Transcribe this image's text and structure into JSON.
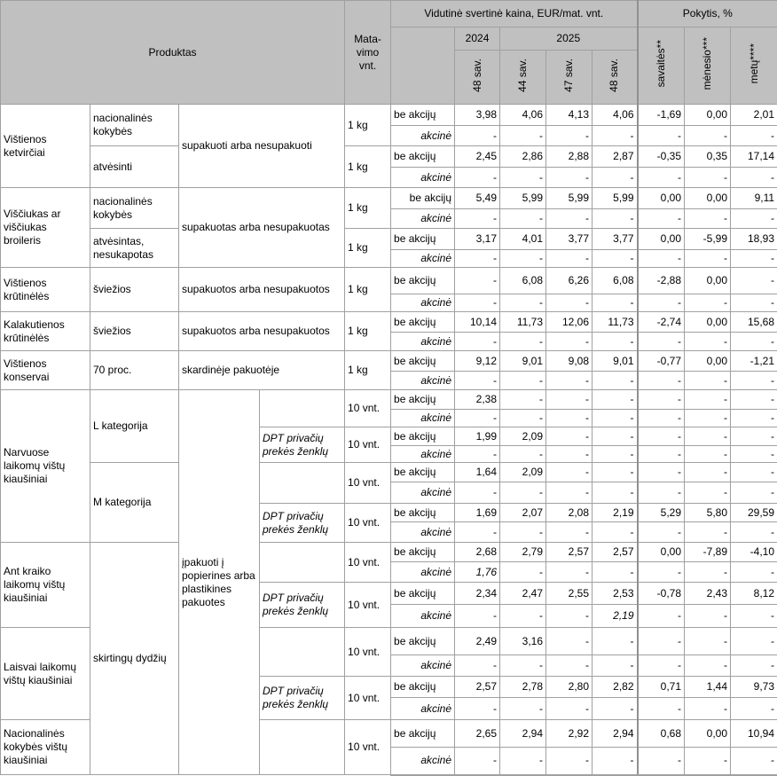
{
  "header": {
    "product": "Produktas",
    "unit": "Mata-\nvimo\nvnt.",
    "avg_price": "Vidutinė svertinė kaina, EUR/mat. vnt.",
    "change": "Pokytis, %",
    "year_2024": "2024",
    "year_2025": "2025",
    "weeks": [
      "48 sav.",
      "44 sav.",
      "47 sav.",
      "48 sav."
    ],
    "change_cols": [
      "savaitės**",
      "mėnesio***",
      "metų****"
    ]
  },
  "type_labels": {
    "regular": "be akcijų",
    "promo": "akcinė"
  },
  "col_product": [
    {
      "text": "Vištienos ketvirčiai",
      "rows": 2
    },
    {
      "text": "Viščiukas ar viščiukas broileris",
      "rows": 2
    },
    {
      "text": "Vištienos krūtinėlės",
      "rows": 1
    },
    {
      "text": "Kalakutienos krūtinėlės",
      "rows": 1
    },
    {
      "text": "Vištienos konservai",
      "rows": 1
    },
    {
      "text": "Narvuose laikomų vištų kiaušiniai",
      "rows": 4
    },
    {
      "text": "Ant kraiko laikomų vištų kiaušiniai",
      "rows": 2
    },
    {
      "text": "Laisvai laikomų vištų kiaušiniai",
      "rows": 2
    },
    {
      "text": "Nacionalinės kokybės vištų kiaušiniai",
      "rows": 1
    }
  ],
  "col_variant": [
    {
      "text": "nacionalinės kokybės",
      "rows": 1
    },
    {
      "text": "atvėsinti",
      "rows": 1
    },
    {
      "text": "nacionalinės kokybės",
      "rows": 1
    },
    {
      "text": "atvėsintas, nesukapotas",
      "rows": 1
    },
    {
      "text": "šviežios",
      "rows": 1
    },
    {
      "text": "šviežios",
      "rows": 1
    },
    {
      "text": "70 proc.",
      "rows": 1
    },
    {
      "text": "L kategorija",
      "rows": 2
    },
    {
      "text": "M kategorija",
      "rows": 2
    },
    {
      "text": "skirtingų dydžių",
      "rows": 5
    }
  ],
  "col_packaging": [
    {
      "text": "supakuoti arba nesupakuoti",
      "rows": 2
    },
    {
      "text": "supakuotas arba nesupakuotas",
      "rows": 2
    },
    {
      "text": "supakuotos arba nesupakuotos",
      "rows": 1
    },
    {
      "text": "supakuotos arba nesupakuotos",
      "rows": 1
    },
    {
      "text": "skardinėje pakuotėje",
      "rows": 1
    },
    {
      "text": "įpakuoti  į popierines arba plastikines pakuotes",
      "rows": 9
    }
  ],
  "col_brand": [
    "",
    "DPT privačių prekės ženklų",
    "",
    "DPT privačių prekės ženklų",
    "",
    "DPT privačių prekės ženklų",
    "",
    "DPT privačių prekės ženklų",
    ""
  ],
  "rows": [
    {
      "unit": "1 kg",
      "regular": [
        "3,98",
        "4,06",
        "4,13",
        "4,06",
        "-1,69",
        "0,00",
        "2,01"
      ],
      "promo": [
        "-",
        "-",
        "-",
        "-",
        "-",
        "-",
        "-"
      ]
    },
    {
      "unit": "1 kg",
      "regular": [
        "2,45",
        "2,86",
        "2,88",
        "2,87",
        "-0,35",
        "0,35",
        "17,14"
      ],
      "promo": [
        "-",
        "-",
        "-",
        "-",
        "-",
        "-",
        "-"
      ]
    },
    {
      "unit": "1 kg",
      "regular": [
        "5,49",
        "5,99",
        "5,99",
        "5,99",
        "0,00",
        "0,00",
        "9,11"
      ],
      "promo": [
        "-",
        "-",
        "-",
        "-",
        "-",
        "-",
        "-"
      ]
    },
    {
      "unit": "1 kg",
      "regular": [
        "3,17",
        "4,01",
        "3,77",
        "3,77",
        "0,00",
        "-5,99",
        "18,93"
      ],
      "promo": [
        "-",
        "-",
        "-",
        "-",
        "-",
        "-",
        "-"
      ]
    },
    {
      "unit": "1 kg",
      "regular": [
        "-",
        "6,08",
        "6,26",
        "6,08",
        "-2,88",
        "0,00",
        "-"
      ],
      "promo": [
        "-",
        "-",
        "-",
        "-",
        "-",
        "-",
        "-"
      ]
    },
    {
      "unit": "1 kg",
      "regular": [
        "10,14",
        "11,73",
        "12,06",
        "11,73",
        "-2,74",
        "0,00",
        "15,68"
      ],
      "promo": [
        "-",
        "-",
        "-",
        "-",
        "-",
        "-",
        "-"
      ]
    },
    {
      "unit": "1 kg",
      "regular": [
        "9,12",
        "9,01",
        "9,08",
        "9,01",
        "-0,77",
        "0,00",
        "-1,21"
      ],
      "promo": [
        "-",
        "-",
        "-",
        "-",
        "-",
        "-",
        "-"
      ]
    },
    {
      "unit": "10 vnt.",
      "regular": [
        "2,38",
        "-",
        "-",
        "-",
        "-",
        "-",
        "-"
      ],
      "promo": [
        "-",
        "-",
        "-",
        "-",
        "-",
        "-",
        "-"
      ]
    },
    {
      "unit": "10 vnt.",
      "regular": [
        "1,99",
        "2,09",
        "-",
        "-",
        "-",
        "-",
        "-"
      ],
      "promo": [
        "-",
        "-",
        "-",
        "-",
        "-",
        "-",
        "-"
      ]
    },
    {
      "unit": "10 vnt.",
      "regular": [
        "1,64",
        "2,09",
        "-",
        "-",
        "-",
        "-",
        "-"
      ],
      "promo": [
        "-",
        "-",
        "-",
        "-",
        "-",
        "-",
        "-"
      ]
    },
    {
      "unit": "10 vnt.",
      "regular": [
        "1,69",
        "2,07",
        "2,08",
        "2,19",
        "5,29",
        "5,80",
        "29,59"
      ],
      "promo": [
        "-",
        "-",
        "-",
        "-",
        "-",
        "-",
        "-"
      ]
    },
    {
      "unit": "10 vnt.",
      "regular": [
        "2,68",
        "2,79",
        "2,57",
        "2,57",
        "0,00",
        "-7,89",
        "-4,10"
      ],
      "promo": [
        "1,76",
        "-",
        "-",
        "-",
        "-",
        "-",
        "-"
      ]
    },
    {
      "unit": "10 vnt.",
      "regular": [
        "2,34",
        "2,47",
        "2,55",
        "2,53",
        "-0,78",
        "2,43",
        "8,12"
      ],
      "promo": [
        "-",
        "-",
        "-",
        "2,19",
        "-",
        "-",
        "-"
      ]
    },
    {
      "unit": "10 vnt.",
      "regular": [
        "2,49",
        "3,16",
        "-",
        "-",
        "-",
        "-",
        "-"
      ],
      "promo": [
        "-",
        "-",
        "-",
        "-",
        "-",
        "-",
        "-"
      ]
    },
    {
      "unit": "10 vnt.",
      "regular": [
        "2,57",
        "2,78",
        "2,80",
        "2,82",
        "0,71",
        "1,44",
        "9,73"
      ],
      "promo": [
        "-",
        "-",
        "-",
        "-",
        "-",
        "-",
        "-"
      ]
    },
    {
      "unit": "10 vnt.",
      "regular": [
        "2,65",
        "2,94",
        "2,92",
        "2,94",
        "0,68",
        "0,00",
        "10,94"
      ],
      "promo": [
        "-",
        "-",
        "-",
        "-",
        "-",
        "-",
        "-"
      ]
    }
  ]
}
